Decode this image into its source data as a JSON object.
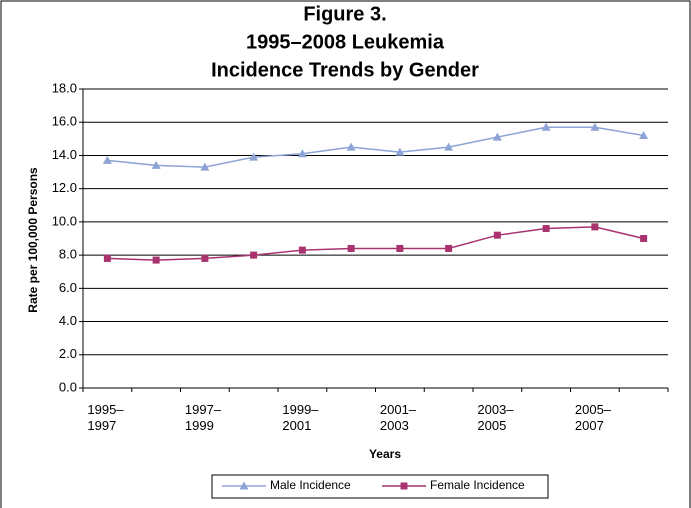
{
  "chart_data": {
    "type": "line",
    "title": [
      "Figure 3.",
      "1995–2008 Leukemia",
      "Incidence Trends by Gender"
    ],
    "x_label": "Years",
    "y_label": "Rate per 100,000 Persons",
    "categories": [
      "1995–1997",
      null,
      "1997–1999",
      null,
      "1999–2001",
      null,
      "2001–2003",
      null,
      "2003–2005",
      null,
      "2005–2007",
      null
    ],
    "series": [
      {
        "name": "Male Incidence",
        "color": "#8ea4d6",
        "marker": "triangle",
        "values": [
          13.7,
          13.4,
          13.3,
          13.9,
          14.1,
          14.5,
          14.2,
          14.5,
          15.1,
          15.7,
          15.7,
          15.2
        ]
      },
      {
        "name": "Female Incidence",
        "color": "#a8336e",
        "marker": "square",
        "values": [
          7.8,
          7.7,
          7.8,
          8.0,
          8.3,
          8.4,
          8.4,
          8.4,
          9.2,
          9.6,
          9.7,
          9.0
        ]
      }
    ],
    "ylim": [
      0,
      18
    ],
    "yticks": [
      {
        "value": 0,
        "label": "0.0"
      },
      {
        "value": 2,
        "label": "2.0"
      },
      {
        "value": 4,
        "label": "4.0"
      },
      {
        "value": 6,
        "label": "6.0"
      },
      {
        "value": 8,
        "label": "8.0"
      },
      {
        "value": 10,
        "label": "10.0"
      },
      {
        "value": 12,
        "label": "12.0"
      },
      {
        "value": 14,
        "label": "14.0"
      },
      {
        "value": 16,
        "label": "16.0"
      },
      {
        "value": 18,
        "label": "18.0"
      }
    ],
    "grid": true,
    "legend": "bottom"
  }
}
